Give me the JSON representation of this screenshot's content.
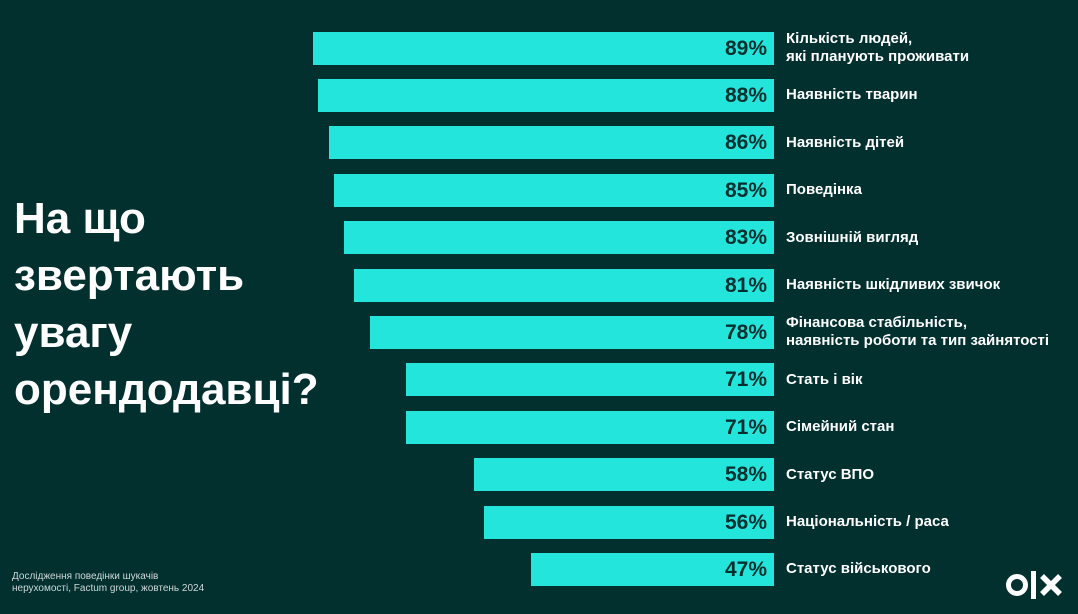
{
  "chart_data": {
    "type": "bar",
    "orientation": "horizontal",
    "title": "На що\nзвертають\nувагу\nорендодавці?",
    "note": "Дослідження поведінки шукачів\nнерухомості, Factum group, жовтень 2024",
    "categories": [
      "Кількість людей,\nякі планують проживати",
      "Наявність тварин",
      "Наявність дітей",
      "Поведінка",
      "Зовнішній вигляд",
      "Наявність шкідливих звичок",
      "Фінансова стабільність,\nнаявність роботи та тип зайнятості",
      "Стать і вік",
      "Сімейний стан",
      "Статус ВПО",
      "Національність / раса",
      "Статус військового"
    ],
    "values": [
      89,
      88,
      86,
      85,
      83,
      81,
      78,
      71,
      71,
      58,
      56,
      47
    ],
    "value_labels": [
      "89%",
      "88%",
      "86%",
      "85%",
      "83%",
      "81%",
      "78%",
      "71%",
      "71%",
      "58%",
      "56%",
      "47%"
    ],
    "xlim": [
      0,
      100
    ],
    "color": "#23e5db"
  }
}
